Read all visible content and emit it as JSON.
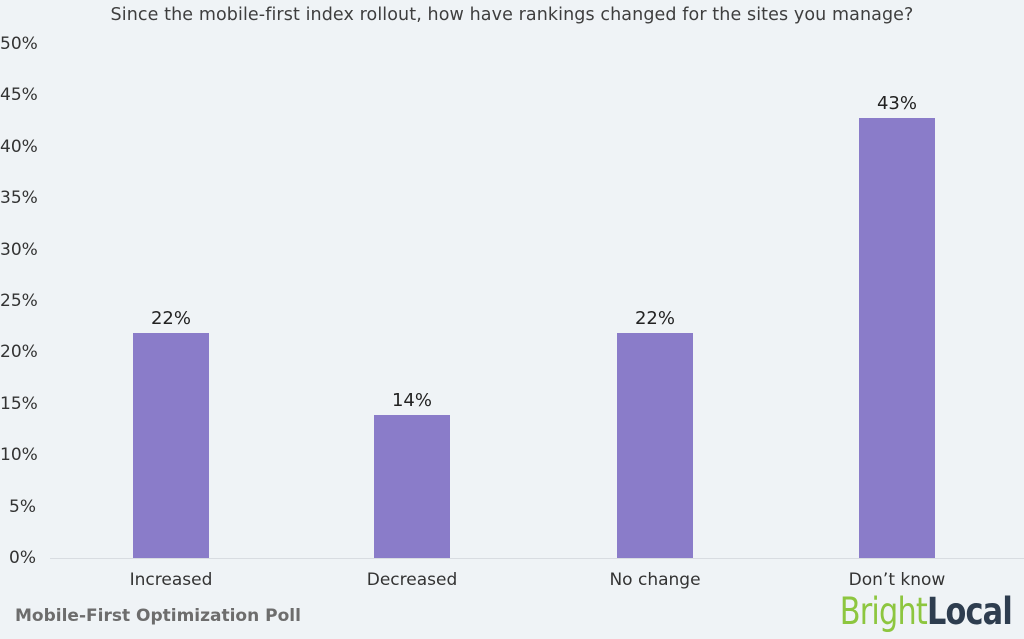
{
  "chart_data": {
    "type": "bar",
    "title": "Since the mobile-first index rollout, how have rankings changed for the sites you manage?",
    "categories": [
      "Increased",
      "Decreased",
      "No change",
      "Don’t know"
    ],
    "values": [
      22,
      14,
      22,
      43
    ],
    "value_labels": [
      "22%",
      "14%",
      "22%",
      "43%"
    ],
    "yticks": [
      "50%",
      "45%",
      "40%",
      "35%",
      "30%",
      "25%",
      "20%",
      "15%",
      "10%",
      "5%",
      "0%"
    ],
    "ylabel": "",
    "xlabel": "",
    "ylim": [
      0,
      50
    ],
    "grid": false,
    "legend": false,
    "bar_color": "#8a7cc9",
    "background_color": "#eff3f6"
  },
  "footer": {
    "caption": "Mobile-First Optimization Poll",
    "logo_part1": "Bright",
    "logo_part2": "Local",
    "logo_green": "#8dc63f",
    "logo_dark": "#2e3d4f"
  }
}
